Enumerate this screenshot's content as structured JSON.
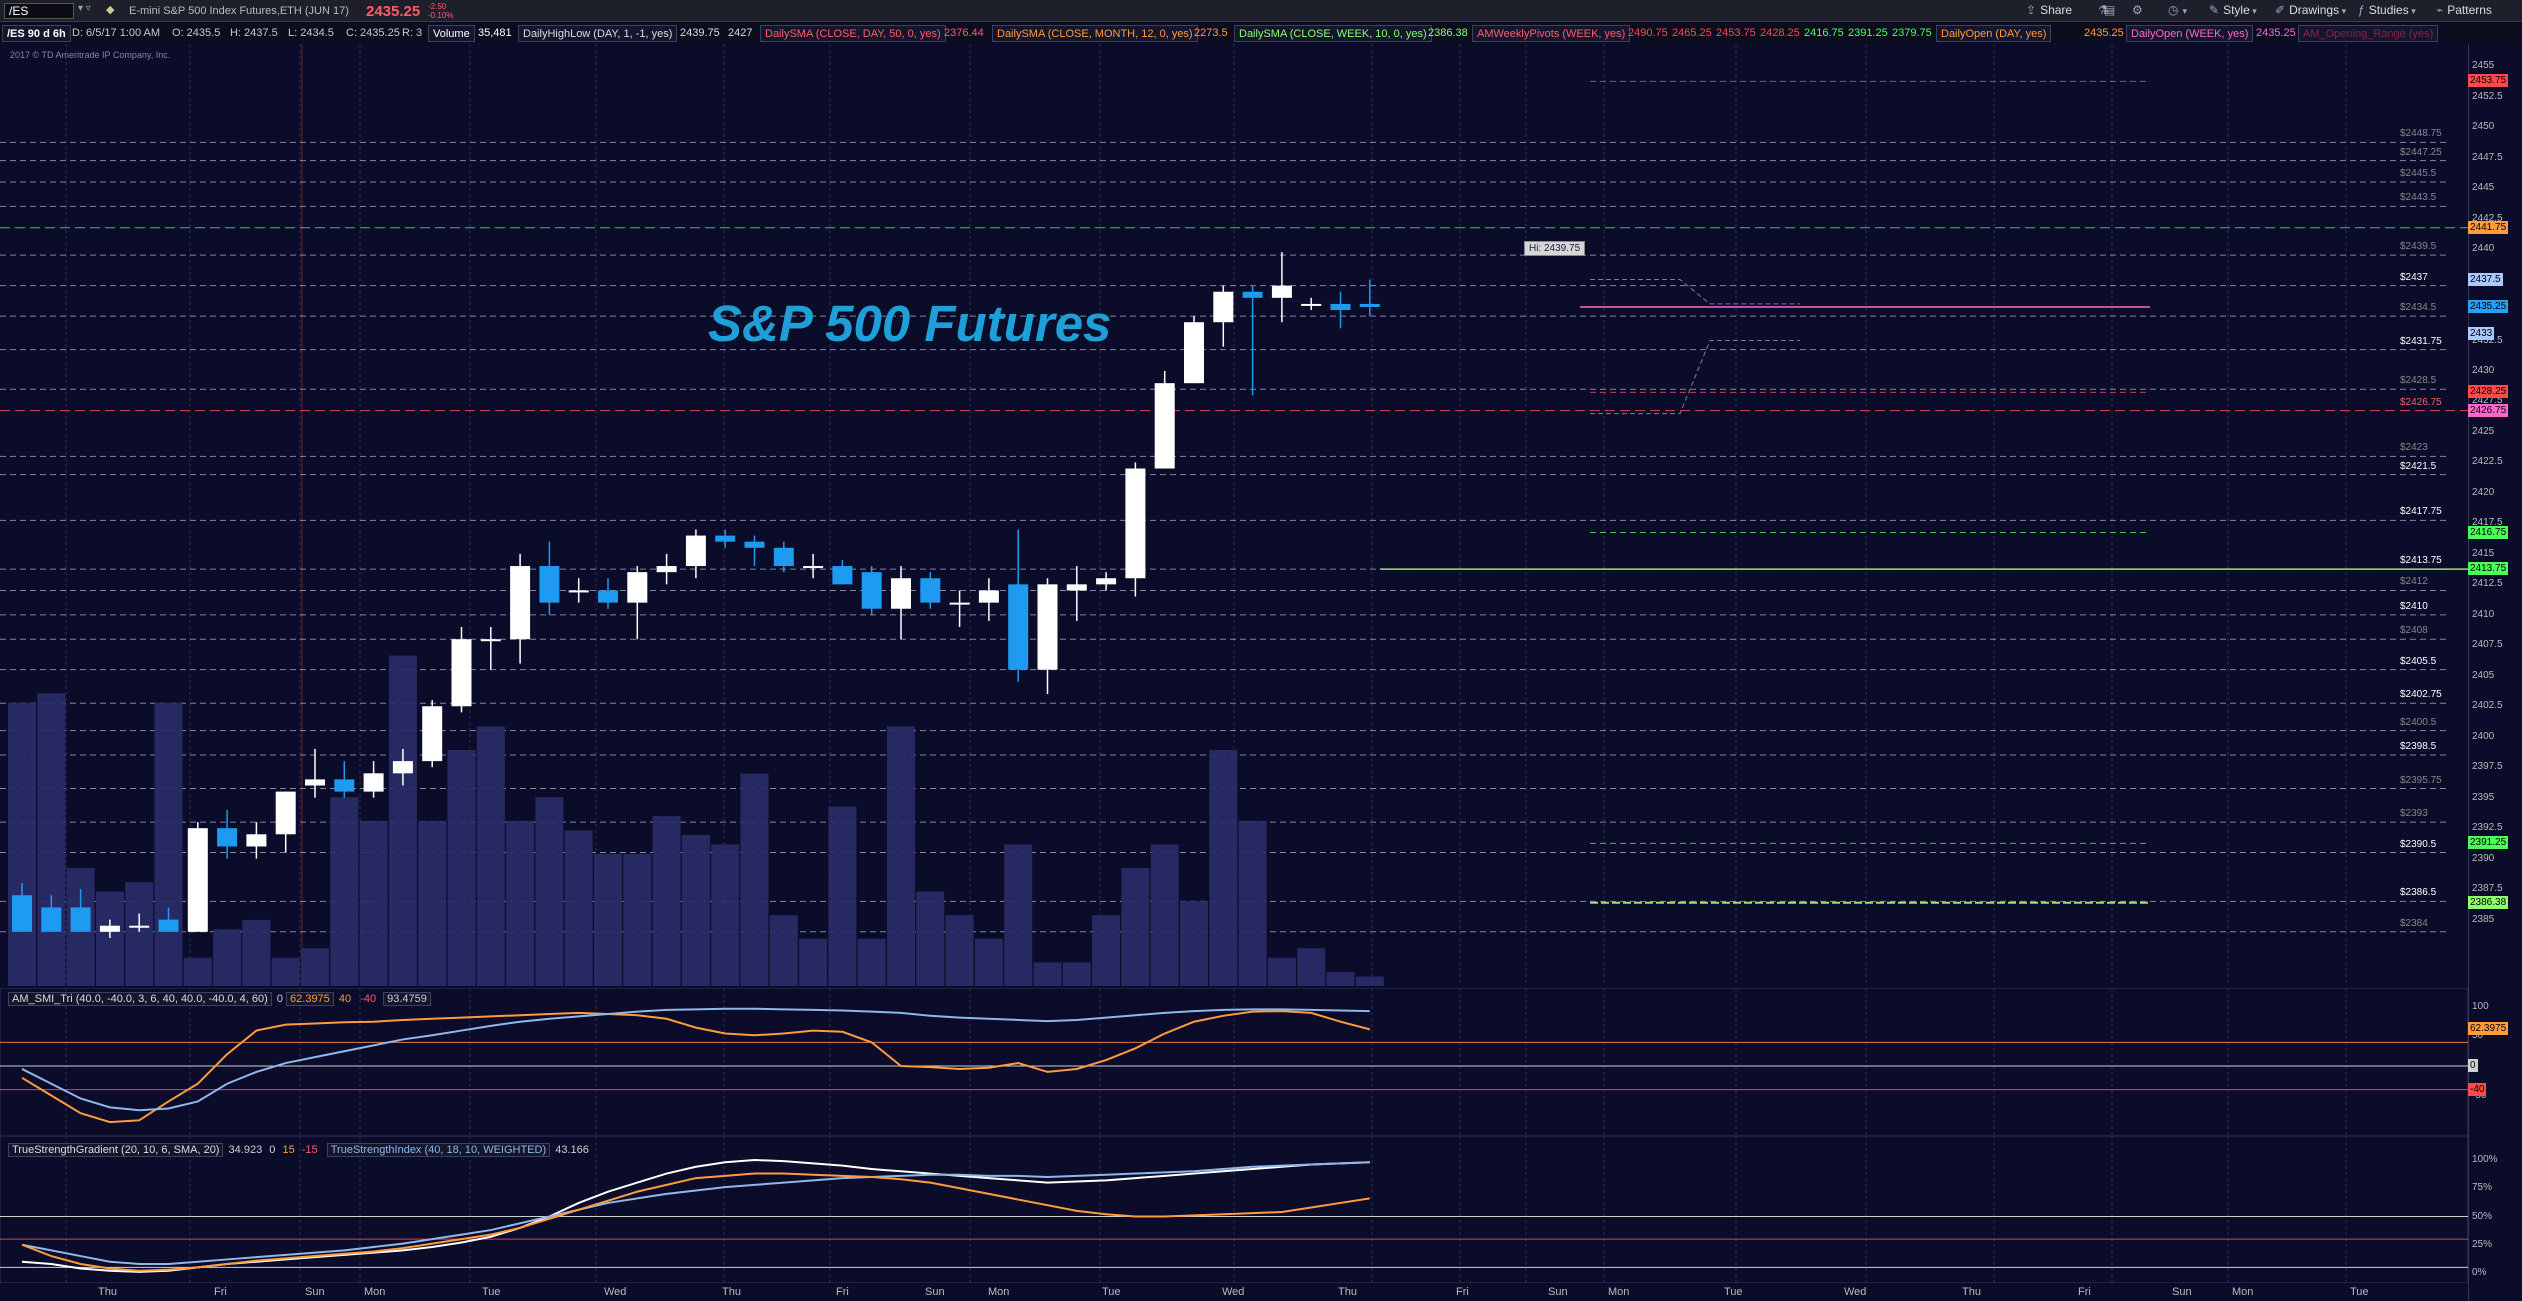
{
  "toolbar": {
    "symbol": "/ES",
    "description": "E-mini S&P 500 Index Futures,ETH (JUN 17)",
    "last": "2435.25",
    "change_top": "-2.50",
    "change_bottom": "-0.10%",
    "buttons": [
      {
        "label": "Share",
        "icon": "share-icon",
        "glyph": "⇪"
      },
      {
        "label": "",
        "icon": "flask-icon",
        "glyph": "⚗"
      },
      {
        "label": "",
        "icon": "template-icon",
        "glyph": "▤"
      },
      {
        "label": "",
        "icon": "settings-icon",
        "glyph": "⚙"
      },
      {
        "label": "",
        "icon": "clock-icon",
        "glyph": "◷"
      },
      {
        "label": "Style",
        "icon": "style-icon",
        "glyph": "✎"
      },
      {
        "label": "Drawings",
        "icon": "drawings-icon",
        "glyph": "✐"
      },
      {
        "label": "Studies",
        "icon": "studies-icon",
        "glyph": "ƒ"
      },
      {
        "label": "Patterns",
        "icon": "patterns-icon",
        "glyph": "⌁"
      }
    ]
  },
  "study_row": {
    "timeframe": "/ES 90 d 6h",
    "ohlc": {
      "D": "D: 6/5/17 1:00 AM",
      "O": "O: 2435.5",
      "H": "H: 2437.5",
      "L": "L: 2434.5",
      "C": "C: 2435.25",
      "R": "R: 3"
    },
    "items": [
      {
        "label": "Volume",
        "value": "35,481",
        "color": "#ffffff"
      },
      {
        "label": "DailyHighLow (DAY, 1, -1, yes)",
        "value": "2439.75",
        "value2": "2427",
        "color": "#d0d0d0"
      },
      {
        "label": "DailySMA (CLOSE, DAY, 50, 0, yes)",
        "value": "2376.44",
        "color": "#ff5c6a"
      },
      {
        "label": "DailySMA (CLOSE, MONTH, 12, 0, yes)",
        "value": "2273.5",
        "color": "#ff9b3d"
      },
      {
        "label": "DailySMA (CLOSE, WEEK, 10, 0, yes)",
        "value": "2386.38",
        "color": "#8dff6a"
      },
      {
        "label": "AMWeeklyPivots (WEEK, yes)",
        "values": [
          "2490.75",
          "2465.25",
          "2453.75",
          "2428.25",
          "2416.75",
          "2391.25",
          "2379.75"
        ],
        "colors": [
          "#ff4a4a",
          "#ff4a4a",
          "#ff4a4a",
          "#ff4a4a",
          "#4aff5a",
          "#4aff5a",
          "#4aff5a"
        ]
      },
      {
        "label": "DailyOpen (DAY, yes)",
        "value": "2435.25",
        "color": "#ff9b3d"
      },
      {
        "label": "DailyOpen (WEEK, yes)",
        "value": "2435.25",
        "color": "#ff66cc"
      },
      {
        "label": "AM_Opening_Range (yes)",
        "value": "",
        "color": "#882244"
      }
    ]
  },
  "copyright": "2017 © TD Ameritrade IP Company, Inc.",
  "title": "S&P 500 Futures",
  "hi_label": "Hi: 2439.75",
  "price_axis": {
    "ticks": [
      "2455",
      "2452.5",
      "2450",
      "2447.5",
      "2445",
      "2442.5",
      "2440",
      "2437.5",
      "2435",
      "2432.5",
      "2430",
      "2427.5",
      "2425",
      "2422.5",
      "2420",
      "2417.5",
      "2415",
      "2412.5",
      "2410",
      "2407.5",
      "2405",
      "2402.5",
      "2400",
      "2397.5",
      "2395",
      "2392.5",
      "2390",
      "2387.5",
      "2385"
    ],
    "level_labels": [
      {
        "text": "$2448.75",
        "price": 2448.75,
        "color": "#888"
      },
      {
        "text": "$2447.25",
        "price": 2447.25,
        "color": "#888"
      },
      {
        "text": "$2445.5",
        "price": 2445.5,
        "color": "#888"
      },
      {
        "text": "$2443.5",
        "price": 2443.5,
        "color": "#888"
      },
      {
        "text": "$2439.5",
        "price": 2439.5,
        "color": "#888"
      },
      {
        "text": "$2437",
        "price": 2437,
        "color": "#fff"
      },
      {
        "text": "$2434.5",
        "price": 2434.5,
        "color": "#888"
      },
      {
        "text": "$2431.75",
        "price": 2431.75,
        "color": "#fff"
      },
      {
        "text": "$2428.5",
        "price": 2428.5,
        "color": "#888"
      },
      {
        "text": "$2426.75",
        "price": 2426.75,
        "color": "#ff5c6a"
      },
      {
        "text": "$2423",
        "price": 2423,
        "color": "#888"
      },
      {
        "text": "$2421.5",
        "price": 2421.5,
        "color": "#fff"
      },
      {
        "text": "$2417.75",
        "price": 2417.75,
        "color": "#fff"
      },
      {
        "text": "$2413.75",
        "price": 2413.75,
        "color": "#fff"
      },
      {
        "text": "$2412",
        "price": 2412,
        "color": "#888"
      },
      {
        "text": "$2410",
        "price": 2410,
        "color": "#fff"
      },
      {
        "text": "$2408",
        "price": 2408,
        "color": "#888"
      },
      {
        "text": "$2405.5",
        "price": 2405.5,
        "color": "#fff"
      },
      {
        "text": "$2402.75",
        "price": 2402.75,
        "color": "#fff"
      },
      {
        "text": "$2400.5",
        "price": 2400.5,
        "color": "#888"
      },
      {
        "text": "$2398.5",
        "price": 2398.5,
        "color": "#fff"
      },
      {
        "text": "$2395.75",
        "price": 2395.75,
        "color": "#888"
      },
      {
        "text": "$2393",
        "price": 2393,
        "color": "#888"
      },
      {
        "text": "$2390.5",
        "price": 2390.5,
        "color": "#fff"
      },
      {
        "text": "$2386.5",
        "price": 2386.5,
        "color": "#fff"
      },
      {
        "text": "$2384",
        "price": 2384,
        "color": "#888"
      }
    ],
    "pills": [
      {
        "text": "2453.75",
        "price": 2453.75,
        "color": "#ff4a4a"
      },
      {
        "text": "2441.75",
        "price": 2441.75,
        "color": "#ff9b3d"
      },
      {
        "text": "2437.5",
        "price": 2437.5,
        "color": "#a8c8ff"
      },
      {
        "text": "2435.25",
        "price": 2435.25,
        "color": "#2a9df4"
      },
      {
        "text": "2433",
        "price": 2433,
        "color": "#a8c8ff"
      },
      {
        "text": "2428.25",
        "price": 2428.25,
        "color": "#ff4a4a"
      },
      {
        "text": "2426.75",
        "price": 2426.75,
        "color": "#ff66cc"
      },
      {
        "text": "2416.75",
        "price": 2416.75,
        "color": "#4aff5a"
      },
      {
        "text": "2413.75",
        "price": 2413.75,
        "color": "#4aff5a"
      },
      {
        "text": "2391.25",
        "price": 2391.25,
        "color": "#4aff5a"
      },
      {
        "text": "2386.38",
        "price": 2386.38,
        "color": "#8dff6a"
      }
    ]
  },
  "support_resistance": [
    2448.75,
    2447.25,
    2445.5,
    2443.5,
    2439.5,
    2437,
    2434.5,
    2431.75,
    2428.5,
    2423,
    2421.5,
    2417.75,
    2413.75,
    2412,
    2410,
    2408,
    2405.5,
    2402.75,
    2400.5,
    2398.5,
    2395.75,
    2393,
    2390.5,
    2386.5,
    2384
  ],
  "key_lines": {
    "red_level": 2426.75,
    "green_level": 2441.75,
    "sma_level": 2413.75,
    "pink_open": 2435.25
  },
  "chart_data": {
    "type": "candlestick",
    "symbol": "/ES",
    "candles": [
      {
        "o": 2387,
        "h": 2388,
        "l": 2384,
        "c": 2384
      },
      {
        "o": 2386,
        "h": 2387,
        "l": 2384,
        "c": 2384
      },
      {
        "o": 2386,
        "h": 2387.5,
        "l": 2384,
        "c": 2384
      },
      {
        "o": 2384,
        "h": 2385,
        "l": 2383.5,
        "c": 2384.5
      },
      {
        "o": 2384.5,
        "h": 2385.5,
        "l": 2384,
        "c": 2384.5
      },
      {
        "o": 2385,
        "h": 2386,
        "l": 2384,
        "c": 2384
      },
      {
        "o": 2384,
        "h": 2393,
        "l": 2384,
        "c": 2392.5
      },
      {
        "o": 2392.5,
        "h": 2394,
        "l": 2390,
        "c": 2391
      },
      {
        "o": 2391,
        "h": 2393,
        "l": 2390,
        "c": 2392
      },
      {
        "o": 2392,
        "h": 2395.5,
        "l": 2390.5,
        "c": 2395.5
      },
      {
        "o": 2396,
        "h": 2399,
        "l": 2395,
        "c": 2396.5
      },
      {
        "o": 2396.5,
        "h": 2398,
        "l": 2395,
        "c": 2395.5
      },
      {
        "o": 2395.5,
        "h": 2398,
        "l": 2395,
        "c": 2397
      },
      {
        "o": 2397,
        "h": 2399,
        "l": 2396,
        "c": 2398
      },
      {
        "o": 2398,
        "h": 2403,
        "l": 2397.5,
        "c": 2402.5
      },
      {
        "o": 2402.5,
        "h": 2409,
        "l": 2402,
        "c": 2408
      },
      {
        "o": 2408,
        "h": 2409,
        "l": 2405.5,
        "c": 2408
      },
      {
        "o": 2408,
        "h": 2415,
        "l": 2406,
        "c": 2414
      },
      {
        "o": 2414,
        "h": 2416,
        "l": 2410,
        "c": 2411
      },
      {
        "o": 2412,
        "h": 2413,
        "l": 2411,
        "c": 2412
      },
      {
        "o": 2412,
        "h": 2413,
        "l": 2410.5,
        "c": 2411
      },
      {
        "o": 2411,
        "h": 2414,
        "l": 2408,
        "c": 2413.5
      },
      {
        "o": 2413.5,
        "h": 2415,
        "l": 2412.5,
        "c": 2414
      },
      {
        "o": 2414,
        "h": 2417,
        "l": 2413,
        "c": 2416.5
      },
      {
        "o": 2416.5,
        "h": 2417,
        "l": 2415.5,
        "c": 2416
      },
      {
        "o": 2416,
        "h": 2416.5,
        "l": 2414,
        "c": 2415.5
      },
      {
        "o": 2415.5,
        "h": 2416,
        "l": 2413.5,
        "c": 2414
      },
      {
        "o": 2414,
        "h": 2415,
        "l": 2413,
        "c": 2414
      },
      {
        "o": 2414,
        "h": 2414.5,
        "l": 2412.5,
        "c": 2412.5
      },
      {
        "o": 2413.5,
        "h": 2414,
        "l": 2410,
        "c": 2410.5
      },
      {
        "o": 2410.5,
        "h": 2414,
        "l": 2408,
        "c": 2413
      },
      {
        "o": 2413,
        "h": 2413.5,
        "l": 2410.5,
        "c": 2411
      },
      {
        "o": 2411,
        "h": 2412,
        "l": 2409,
        "c": 2411
      },
      {
        "o": 2411,
        "h": 2413,
        "l": 2409.5,
        "c": 2412
      },
      {
        "o": 2412.5,
        "h": 2417,
        "l": 2404.5,
        "c": 2405.5
      },
      {
        "o": 2405.5,
        "h": 2413,
        "l": 2403.5,
        "c": 2412.5
      },
      {
        "o": 2412,
        "h": 2414,
        "l": 2409.5,
        "c": 2412.5
      },
      {
        "o": 2412.5,
        "h": 2413.5,
        "l": 2412,
        "c": 2413
      },
      {
        "o": 2413,
        "h": 2422.5,
        "l": 2411.5,
        "c": 2422
      },
      {
        "o": 2422,
        "h": 2430,
        "l": 2422,
        "c": 2429
      },
      {
        "o": 2429,
        "h": 2434.5,
        "l": 2429,
        "c": 2434
      },
      {
        "o": 2434,
        "h": 2437,
        "l": 2432,
        "c": 2436.5
      },
      {
        "o": 2436.5,
        "h": 2437,
        "l": 2428,
        "c": 2436
      },
      {
        "o": 2436,
        "h": 2439.75,
        "l": 2434,
        "c": 2437
      },
      {
        "o": 2435.5,
        "h": 2436,
        "l": 2435,
        "c": 2435.5
      },
      {
        "o": 2435.5,
        "h": 2436.5,
        "l": 2433.5,
        "c": 2435
      },
      {
        "o": 2435.5,
        "h": 2437.5,
        "l": 2434.5,
        "c": 2435.25
      }
    ],
    "volume": [
      60,
      62,
      25,
      20,
      22,
      60,
      6,
      12,
      14,
      6,
      8,
      40,
      35,
      70,
      35,
      50,
      55,
      35,
      40,
      33,
      28,
      28,
      36,
      32,
      30,
      45,
      15,
      10,
      38,
      10,
      55,
      20,
      15,
      10,
      30,
      5,
      5,
      15,
      25,
      30,
      18,
      50,
      35,
      6,
      8,
      3,
      2
    ],
    "volume_ylim": [
      0,
      100
    ],
    "ylim": [
      2383,
      2456
    ],
    "x_day_labels": [
      "Thu",
      "Fri",
      "Sun",
      "Mon",
      "Tue",
      "Wed",
      "Thu",
      "Fri",
      "Sun",
      "Mon",
      "Tue",
      "Wed",
      "Thu",
      "Fri",
      "Sun",
      "Mon",
      "Tue",
      "Wed",
      "Thu",
      "Fri",
      "Sun",
      "Mon",
      "Tue"
    ]
  },
  "smi_panel": {
    "label": "AM_SMI_Tri (40.0, -40.0, 3, 6, 40, 40.0, -40.0, 4, 60)",
    "values": [
      "0",
      "62.3975",
      "40",
      "-40",
      "93.4759"
    ],
    "value_colors": [
      "#cfcfcf",
      "#ff9b3d",
      "#ff9b3d",
      "#ff5c6a",
      "#cfcfcf"
    ],
    "axis": [
      "100",
      "50",
      "0",
      "-50"
    ],
    "pills": [
      {
        "text": "62.3975",
        "color": "#ff9b3d"
      },
      {
        "text": "0",
        "color": "#d0d0d0"
      },
      {
        "text": "-40",
        "color": "#ff4a4a"
      }
    ],
    "levels": [
      40,
      0,
      -40
    ],
    "ylim": [
      -105,
      105
    ],
    "series": [
      {
        "name": "SMI",
        "color": "#ff9b3d",
        "values": [
          -20,
          -50,
          -80,
          -95,
          -92,
          -60,
          -30,
          20,
          60,
          70,
          72,
          74,
          75,
          78,
          80,
          82,
          84,
          86,
          88,
          90,
          88,
          86,
          80,
          65,
          55,
          52,
          55,
          60,
          58,
          40,
          0,
          -2,
          -5,
          -3,
          5,
          -10,
          -5,
          10,
          30,
          55,
          75,
          85,
          92,
          93,
          90,
          75,
          62
        ]
      },
      {
        "name": "Signal",
        "color": "#8fb8e8",
        "values": [
          -5,
          -30,
          -55,
          -70,
          -75,
          -72,
          -60,
          -30,
          -10,
          5,
          15,
          25,
          35,
          45,
          52,
          60,
          68,
          75,
          80,
          84,
          88,
          92,
          95,
          96,
          97,
          97,
          96,
          95,
          94,
          92,
          90,
          85,
          82,
          80,
          78,
          76,
          78,
          82,
          86,
          90,
          93,
          95,
          96,
          96,
          95,
          94,
          93
        ]
      }
    ]
  },
  "tsg_panel": {
    "label": "TrueStrengthGradient (20, 10, 6, SMA, 20)",
    "values": [
      "34.923",
      "0",
      "15",
      "-15"
    ],
    "value_colors": [
      "#cfcfcf",
      "#cfcfcf",
      "#ff9b3d",
      "#ff5c6a"
    ],
    "label2": "TrueStrengthIndex (40, 18, 10, WEIGHTED)",
    "value2": "43.166",
    "axis": [
      "100%",
      "75%",
      "50%",
      "25%",
      "0%"
    ],
    "levels": [
      50,
      30
    ],
    "ylim": [
      0,
      100
    ],
    "series": [
      {
        "name": "TrueStrengthGradient",
        "color": "#ffffff",
        "values": [
          10,
          8,
          4,
          2,
          1,
          2,
          5,
          8,
          10,
          12,
          14,
          16,
          18,
          20,
          23,
          27,
          32,
          40,
          50,
          62,
          72,
          80,
          88,
          94,
          98,
          100,
          99,
          97,
          95,
          92,
          90,
          88,
          86,
          84,
          82,
          80,
          81,
          82,
          84,
          86,
          88,
          90,
          92,
          94,
          96,
          97,
          98
        ]
      },
      {
        "name": "TrueStrengthIndex",
        "color": "#8fb8e8",
        "values": [
          25,
          20,
          15,
          10,
          8,
          8,
          10,
          12,
          14,
          16,
          18,
          20,
          23,
          26,
          30,
          34,
          38,
          44,
          50,
          56,
          62,
          66,
          70,
          73,
          76,
          78,
          80,
          82,
          84,
          85,
          86,
          87,
          87,
          86,
          86,
          85,
          86,
          87,
          88,
          89,
          90,
          92,
          94,
          95,
          96,
          97,
          98
        ]
      },
      {
        "name": "Signal",
        "color": "#ff9b3d",
        "values": [
          25,
          15,
          8,
          4,
          2,
          3,
          5,
          8,
          11,
          13,
          15,
          17,
          19,
          22,
          26,
          30,
          34,
          40,
          48,
          56,
          64,
          72,
          78,
          84,
          86,
          88,
          88,
          87,
          86,
          85,
          83,
          80,
          75,
          70,
          65,
          60,
          55,
          52,
          50,
          50,
          51,
          52,
          53,
          54,
          58,
          62,
          66
        ]
      }
    ]
  }
}
